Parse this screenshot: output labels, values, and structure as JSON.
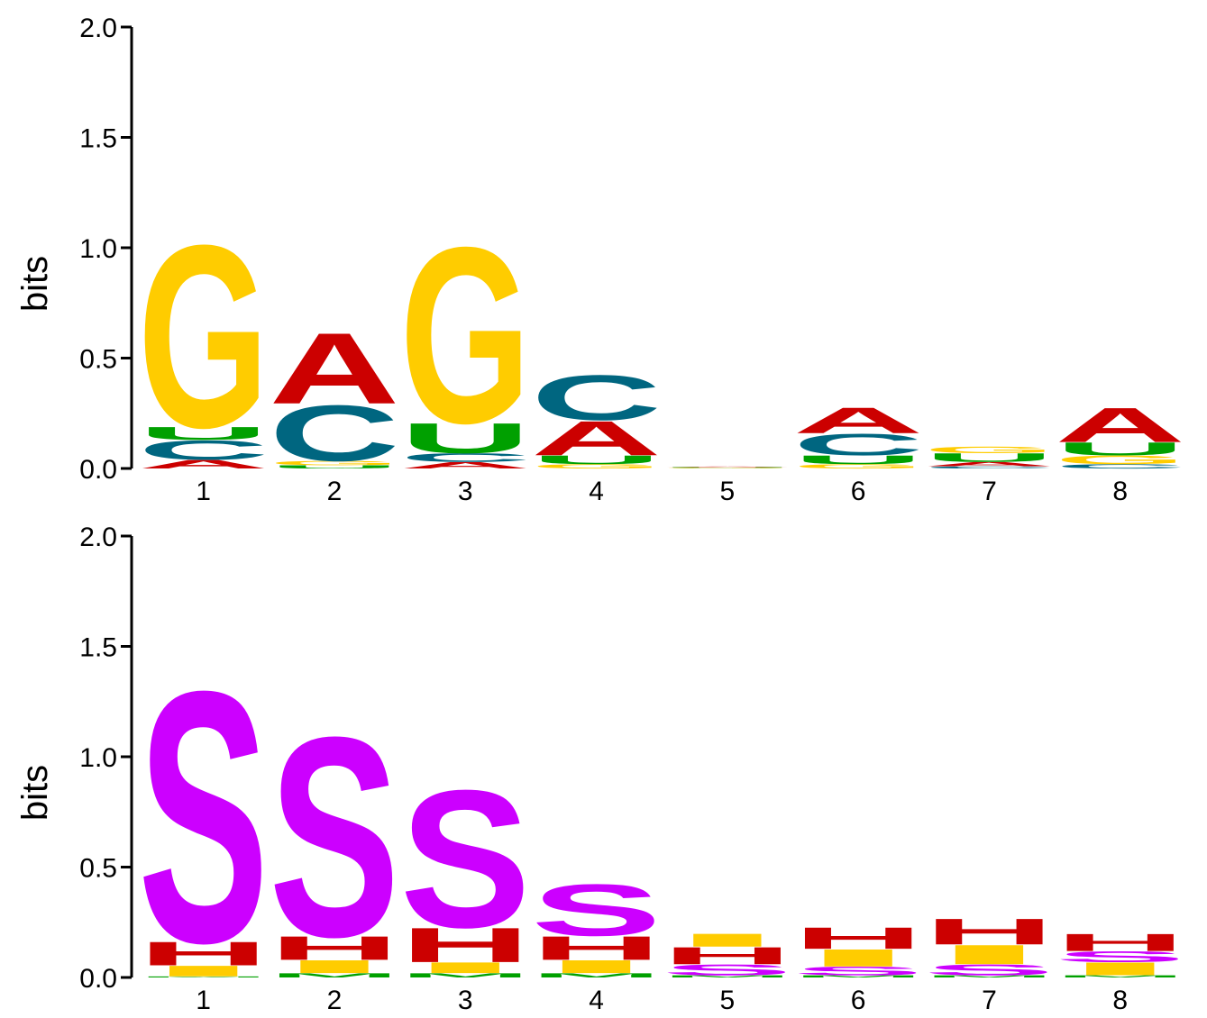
{
  "colors": {
    "A": "#cc0000",
    "C": "#006680",
    "G": "#ffcc00",
    "U": "#00a000",
    "S": "#cc00ff",
    "H": "#cc0000",
    "I": "#ffcc00",
    "M": "#00a000",
    "axis": "#000000"
  },
  "chart_data": [
    {
      "type": "sequence-logo",
      "ylabel": "bits",
      "ylim": [
        0,
        2
      ],
      "yticks": [
        "0.0",
        "0.5",
        "1.0",
        "1.5",
        "2.0"
      ],
      "positions": [
        "1",
        "2",
        "3",
        "4",
        "5",
        "6",
        "7",
        "8"
      ],
      "columns": [
        [
          {
            "letter": "A",
            "height": 0.04
          },
          {
            "letter": "C",
            "height": 0.09
          },
          {
            "letter": "U",
            "height": 0.06
          },
          {
            "letter": "G",
            "height": 0.85
          }
        ],
        [
          {
            "letter": "U",
            "height": 0.015
          },
          {
            "letter": "G",
            "height": 0.02
          },
          {
            "letter": "C",
            "height": 0.26
          },
          {
            "letter": "A",
            "height": 0.33
          }
        ],
        [
          {
            "letter": "A",
            "height": 0.03
          },
          {
            "letter": "C",
            "height": 0.04
          },
          {
            "letter": "U",
            "height": 0.14
          },
          {
            "letter": "G",
            "height": 0.82
          }
        ],
        [
          {
            "letter": "G",
            "height": 0.02
          },
          {
            "letter": "U",
            "height": 0.04
          },
          {
            "letter": "A",
            "height": 0.16
          },
          {
            "letter": "C",
            "height": 0.21
          }
        ],
        [
          {
            "letter": "G",
            "height": 0.003
          },
          {
            "letter": "U",
            "height": 0.003
          },
          {
            "letter": "A",
            "height": 0.003
          }
        ],
        [
          {
            "letter": "G",
            "height": 0.02
          },
          {
            "letter": "U",
            "height": 0.04
          },
          {
            "letter": "C",
            "height": 0.1
          },
          {
            "letter": "A",
            "height": 0.12
          }
        ],
        [
          {
            "letter": "C",
            "height": 0.01
          },
          {
            "letter": "A",
            "height": 0.02
          },
          {
            "letter": "U",
            "height": 0.04
          },
          {
            "letter": "G",
            "height": 0.03
          }
        ],
        [
          {
            "letter": "C",
            "height": 0.02
          },
          {
            "letter": "G",
            "height": 0.04
          },
          {
            "letter": "U",
            "height": 0.06
          },
          {
            "letter": "A",
            "height": 0.16
          }
        ]
      ]
    },
    {
      "type": "sequence-logo",
      "ylabel": "bits",
      "ylim": [
        0,
        2
      ],
      "yticks": [
        "0.0",
        "0.5",
        "1.0",
        "1.5",
        "2.0"
      ],
      "positions": [
        "1",
        "2",
        "3",
        "4",
        "5",
        "6",
        "7",
        "8"
      ],
      "columns": [
        [
          {
            "letter": "M",
            "height": 0.005
          },
          {
            "letter": "I",
            "height": 0.05
          },
          {
            "letter": "H",
            "height": 0.11
          },
          {
            "letter": "S",
            "height": 1.17
          }
        ],
        [
          {
            "letter": "M",
            "height": 0.02
          },
          {
            "letter": "I",
            "height": 0.06
          },
          {
            "letter": "H",
            "height": 0.11
          },
          {
            "letter": "S",
            "height": 0.93
          }
        ],
        [
          {
            "letter": "M",
            "height": 0.02
          },
          {
            "letter": "I",
            "height": 0.05
          },
          {
            "letter": "H",
            "height": 0.16
          },
          {
            "letter": "S",
            "height": 0.64
          }
        ],
        [
          {
            "letter": "M",
            "height": 0.02
          },
          {
            "letter": "I",
            "height": 0.06
          },
          {
            "letter": "H",
            "height": 0.11
          },
          {
            "letter": "S",
            "height": 0.24
          }
        ],
        [
          {
            "letter": "M",
            "height": 0.01
          },
          {
            "letter": "S",
            "height": 0.05
          },
          {
            "letter": "H",
            "height": 0.08
          },
          {
            "letter": "I",
            "height": 0.06
          }
        ],
        [
          {
            "letter": "M",
            "height": 0.01
          },
          {
            "letter": "S",
            "height": 0.04
          },
          {
            "letter": "I",
            "height": 0.08
          },
          {
            "letter": "H",
            "height": 0.1
          }
        ],
        [
          {
            "letter": "M",
            "height": 0.01
          },
          {
            "letter": "S",
            "height": 0.05
          },
          {
            "letter": "I",
            "height": 0.09
          },
          {
            "letter": "H",
            "height": 0.12
          }
        ],
        [
          {
            "letter": "M",
            "height": 0.01
          },
          {
            "letter": "I",
            "height": 0.06
          },
          {
            "letter": "S",
            "height": 0.05
          },
          {
            "letter": "H",
            "height": 0.08
          }
        ]
      ]
    }
  ]
}
